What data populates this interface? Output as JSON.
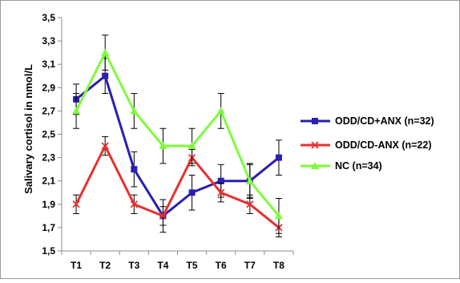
{
  "chart_data": {
    "type": "line",
    "xlabel": "",
    "ylabel": "Salivary cortisol in nmol/L",
    "categories": [
      "T1",
      "T2",
      "T3",
      "T4",
      "T5",
      "T6",
      "T7",
      "T8"
    ],
    "ylim": [
      1.5,
      3.5
    ],
    "y_ticks": [
      "1,5",
      "1,7",
      "1,9",
      "2,1",
      "2,3",
      "2,5",
      "2,7",
      "2,9",
      "3,1",
      "3,3",
      "3,5"
    ],
    "grid": false,
    "legend_position": "right",
    "series": [
      {
        "name": "ODD/CD+ANX (n=32)",
        "color": "#2a1fb0",
        "marker": "square",
        "values": [
          2.8,
          3.0,
          2.2,
          1.8,
          2.0,
          2.1,
          2.1,
          2.3
        ],
        "error": [
          0.13,
          0.15,
          0.15,
          0.14,
          0.15,
          0.14,
          0.14,
          0.15
        ]
      },
      {
        "name": "ODD/CD-ANX (n=22)",
        "color": "#e8302f",
        "marker": "x",
        "values": [
          1.9,
          2.4,
          1.9,
          1.8,
          2.3,
          2.0,
          1.9,
          1.7
        ],
        "error": [
          0.08,
          0.08,
          0.08,
          0.08,
          0.07,
          0.08,
          0.08,
          0.08
        ]
      },
      {
        "name": "NC (n=34)",
        "color": "#7dfc3a",
        "marker": "triangle",
        "values": [
          2.7,
          3.2,
          2.7,
          2.4,
          2.4,
          2.7,
          2.1,
          1.8
        ],
        "error": [
          0.15,
          0.15,
          0.15,
          0.15,
          0.15,
          0.15,
          0.15,
          0.15
        ]
      }
    ]
  }
}
